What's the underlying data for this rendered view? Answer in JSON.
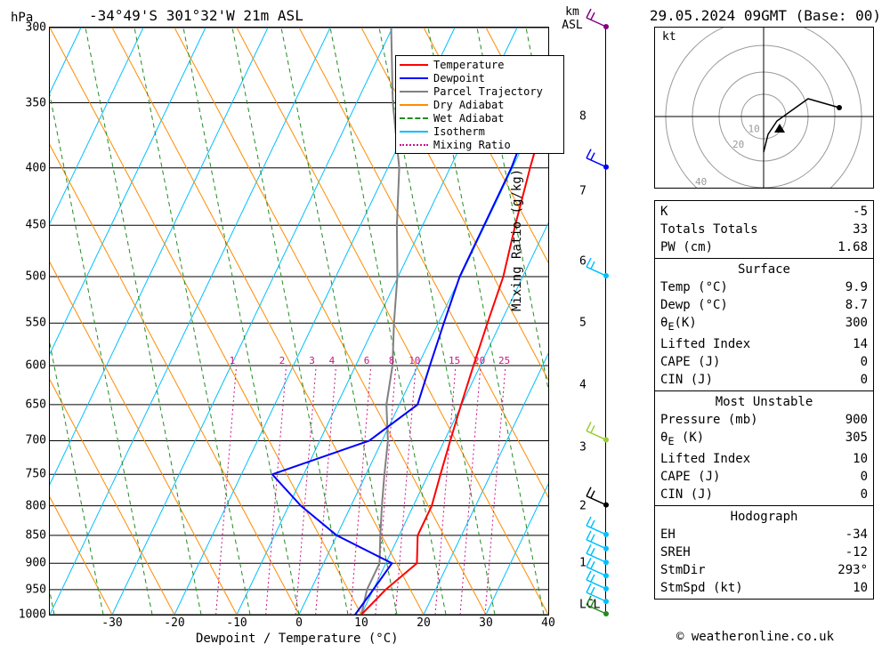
{
  "header": {
    "location": "-34°49'S 301°32'W 21m ASL",
    "datetime": "29.05.2024 09GMT (Base: 00)"
  },
  "axes": {
    "y_left_label": "hPa",
    "y_right_label_top": "km",
    "y_right_label_bot": "ASL",
    "y_right2_label": "Mixing Ratio (g/kg)",
    "x_label": "Dewpoint / Temperature (°C)",
    "pressure_ticks": [
      300,
      350,
      400,
      450,
      500,
      550,
      600,
      650,
      700,
      750,
      800,
      850,
      900,
      950,
      1000
    ],
    "temp_ticks": [
      -30,
      -20,
      -10,
      0,
      10,
      20,
      30,
      40
    ],
    "temp_range": [
      -40,
      40
    ],
    "km_ticks": [
      {
        "v": 1,
        "p": 900
      },
      {
        "v": 2,
        "p": 800
      },
      {
        "v": 3,
        "p": 710
      },
      {
        "v": 4,
        "p": 625
      },
      {
        "v": 5,
        "p": 550
      },
      {
        "v": 6,
        "p": 485
      },
      {
        "v": 7,
        "p": 420
      },
      {
        "v": 8,
        "p": 360
      }
    ],
    "lcl_pressure": 980
  },
  "legend": {
    "items": [
      {
        "label": "Temperature",
        "color": "#ff0000",
        "style": "solid"
      },
      {
        "label": "Dewpoint",
        "color": "#0000ff",
        "style": "solid"
      },
      {
        "label": "Parcel Trajectory",
        "color": "#808080",
        "style": "solid"
      },
      {
        "label": "Dry Adiabat",
        "color": "#ff8c00",
        "style": "solid"
      },
      {
        "label": "Wet Adiabat",
        "color": "#228b22",
        "style": "dashed"
      },
      {
        "label": "Isotherm",
        "color": "#00bfff",
        "style": "solid"
      },
      {
        "label": "Mixing Ratio",
        "color": "#c71585",
        "style": "dotted"
      }
    ]
  },
  "mixing_ratio_labels": [
    "1",
    "2",
    "3",
    "4",
    "6",
    "8",
    "10",
    "15",
    "20",
    "25"
  ],
  "mixing_ratio_positions": [
    0.36,
    0.46,
    0.52,
    0.56,
    0.63,
    0.68,
    0.72,
    0.8,
    0.85,
    0.9
  ],
  "temperature_profile": [
    {
      "p": 1000,
      "t": 10
    },
    {
      "p": 950,
      "t": 12
    },
    {
      "p": 900,
      "t": 15
    },
    {
      "p": 850,
      "t": 13
    },
    {
      "p": 800,
      "t": 13
    },
    {
      "p": 750,
      "t": 12
    },
    {
      "p": 700,
      "t": 11
    },
    {
      "p": 650,
      "t": 10
    },
    {
      "p": 600,
      "t": 9
    },
    {
      "p": 550,
      "t": 8
    },
    {
      "p": 500,
      "t": 7
    },
    {
      "p": 450,
      "t": 5
    },
    {
      "p": 400,
      "t": 3
    },
    {
      "p": 350,
      "t": 1
    },
    {
      "p": 300,
      "t": 0
    }
  ],
  "dewpoint_profile": [
    {
      "p": 1000,
      "t": 9
    },
    {
      "p": 950,
      "t": 10
    },
    {
      "p": 900,
      "t": 11
    },
    {
      "p": 850,
      "t": 0
    },
    {
      "p": 800,
      "t": -8
    },
    {
      "p": 750,
      "t": -15
    },
    {
      "p": 700,
      "t": -2
    },
    {
      "p": 650,
      "t": 3
    },
    {
      "p": 600,
      "t": 2
    },
    {
      "p": 550,
      "t": 1
    },
    {
      "p": 500,
      "t": 0
    },
    {
      "p": 450,
      "t": 0
    },
    {
      "p": 400,
      "t": 0
    },
    {
      "p": 350,
      "t": -1
    },
    {
      "p": 300,
      "t": -2
    }
  ],
  "parcel_profile": [
    {
      "p": 1000,
      "t": 10
    },
    {
      "p": 950,
      "t": 9
    },
    {
      "p": 900,
      "t": 9
    },
    {
      "p": 850,
      "t": 7
    },
    {
      "p": 800,
      "t": 5
    },
    {
      "p": 750,
      "t": 3
    },
    {
      "p": 700,
      "t": 1
    },
    {
      "p": 650,
      "t": -2
    },
    {
      "p": 600,
      "t": -4
    },
    {
      "p": 550,
      "t": -7
    },
    {
      "p": 500,
      "t": -10
    },
    {
      "p": 450,
      "t": -14
    },
    {
      "p": 400,
      "t": -18
    },
    {
      "p": 350,
      "t": -24
    },
    {
      "p": 300,
      "t": -30
    }
  ],
  "wind_barbs": [
    {
      "p": 1000,
      "color": "#228b22"
    },
    {
      "p": 975,
      "color": "#00bfff"
    },
    {
      "p": 950,
      "color": "#00bfff"
    },
    {
      "p": 925,
      "color": "#00bfff"
    },
    {
      "p": 900,
      "color": "#00bfff"
    },
    {
      "p": 875,
      "color": "#00bfff"
    },
    {
      "p": 850,
      "color": "#00bfff"
    },
    {
      "p": 800,
      "color": "#000000"
    },
    {
      "p": 700,
      "color": "#9acd32"
    },
    {
      "p": 500,
      "color": "#00bfff"
    },
    {
      "p": 400,
      "color": "#0000ff"
    },
    {
      "p": 300,
      "color": "#800080"
    }
  ],
  "hodograph": {
    "label": "kt",
    "rings": [
      "10",
      "20",
      "40"
    ]
  },
  "indices": {
    "section1": [
      {
        "label": "K",
        "value": "-5"
      },
      {
        "label": "Totals Totals",
        "value": "33"
      },
      {
        "label": "PW (cm)",
        "value": "1.68"
      }
    ],
    "surface_header": "Surface",
    "surface": [
      {
        "label": "Temp (°C)",
        "value": "9.9"
      },
      {
        "label": "Dewp (°C)",
        "value": "8.7"
      },
      {
        "label": "θ<sub>E</sub>(K)",
        "value": "300",
        "html": true
      },
      {
        "label": "Lifted Index",
        "value": "14"
      },
      {
        "label": "CAPE (J)",
        "value": "0"
      },
      {
        "label": "CIN (J)",
        "value": "0"
      }
    ],
    "unstable_header": "Most Unstable",
    "unstable": [
      {
        "label": "Pressure (mb)",
        "value": "900"
      },
      {
        "label": "θ<sub>E</sub> (K)",
        "value": "305",
        "html": true
      },
      {
        "label": "Lifted Index",
        "value": "10"
      },
      {
        "label": "CAPE (J)",
        "value": "0"
      },
      {
        "label": "CIN (J)",
        "value": "0"
      }
    ],
    "hodo_header": "Hodograph",
    "hodo": [
      {
        "label": "EH",
        "value": "-34"
      },
      {
        "label": "SREH",
        "value": "-12"
      },
      {
        "label": "StmDir",
        "value": "293°"
      },
      {
        "label": "StmSpd (kt)",
        "value": "10"
      }
    ]
  },
  "copyright": "© weatheronline.co.uk",
  "colors": {
    "temperature": "#ff0000",
    "dewpoint": "#0000ff",
    "parcel": "#808080",
    "dry_adiabat": "#ff8c00",
    "wet_adiabat": "#228b22",
    "isotherm": "#00bfff",
    "mixing_ratio": "#c71585",
    "grid": "#000000",
    "background": "#ffffff"
  },
  "styling": {
    "line_width": 2,
    "grid_width": 1,
    "font_family": "monospace",
    "title_fontsize": 16,
    "label_fontsize": 14,
    "tick_fontsize": 13,
    "legend_fontsize": 12
  }
}
